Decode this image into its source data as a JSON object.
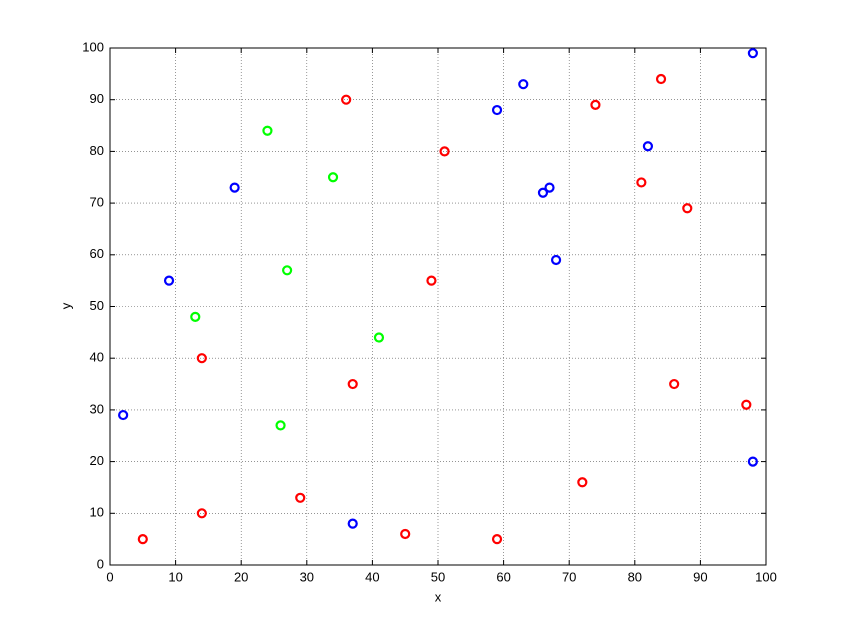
{
  "chart_data": {
    "type": "scatter",
    "xlabel": "x",
    "ylabel": "y",
    "series": [
      {
        "color": "#0000ff",
        "x": [
          2,
          9,
          19,
          37,
          59,
          63,
          66,
          67,
          68,
          82,
          98,
          98
        ],
        "values": [
          29,
          55,
          73,
          8,
          88,
          93,
          72,
          73,
          59,
          81,
          99,
          20
        ]
      },
      {
        "color": "#ff0000",
        "x": [
          5,
          14,
          14,
          29,
          36,
          37,
          45,
          49,
          51,
          59,
          72,
          74,
          81,
          84,
          86,
          88,
          97
        ],
        "values": [
          5,
          40,
          10,
          13,
          90,
          35,
          6,
          55,
          80,
          5,
          16,
          89,
          74,
          94,
          35,
          69,
          31
        ]
      },
      {
        "color": "#00ff00",
        "x": [
          13,
          24,
          26,
          27,
          34,
          41
        ],
        "values": [
          48,
          84,
          27,
          57,
          75,
          44
        ]
      }
    ],
    "xlim": [
      0,
      100
    ],
    "ylim": [
      0,
      100
    ],
    "xticks": [
      0,
      10,
      20,
      30,
      40,
      50,
      60,
      70,
      80,
      90,
      100
    ],
    "yticks": [
      0,
      10,
      20,
      30,
      40,
      50,
      60,
      70,
      80,
      90,
      100
    ],
    "grid": true
  }
}
